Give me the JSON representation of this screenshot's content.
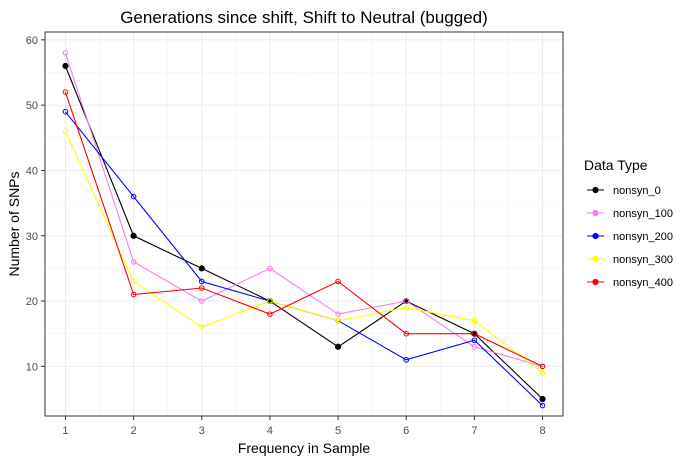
{
  "chart_data": {
    "type": "line",
    "title": "Generations since shift, Shift to Neutral (bugged)",
    "xlabel": "Frequency in Sample",
    "ylabel": "Number of SNPs",
    "x": [
      1,
      2,
      3,
      4,
      5,
      6,
      7,
      8
    ],
    "xlim": [
      0.7,
      8.3
    ],
    "ylim": [
      2.4,
      61.2
    ],
    "yticks": [
      10,
      20,
      30,
      40,
      50,
      60
    ],
    "grid": true,
    "legend": {
      "title": "Data Type",
      "placement": "right"
    },
    "series": [
      {
        "name": "nonsyn_0",
        "color": "#000000",
        "filled": true,
        "values": [
          56,
          30,
          25,
          20,
          13,
          20,
          15,
          5
        ]
      },
      {
        "name": "nonsyn_100",
        "color": "#ee82ee",
        "filled": false,
        "values": [
          58,
          26,
          20,
          25,
          18,
          20,
          13,
          10
        ]
      },
      {
        "name": "nonsyn_200",
        "color": "#0000ff",
        "filled": false,
        "values": [
          49,
          36,
          23,
          20,
          17,
          11,
          14,
          4
        ]
      },
      {
        "name": "nonsyn_300",
        "color": "#ffff00",
        "filled": false,
        "values": [
          46,
          23,
          16,
          20,
          17,
          19,
          17,
          9
        ]
      },
      {
        "name": "nonsyn_400",
        "color": "#ff0000",
        "filled": false,
        "values": [
          52,
          21,
          22,
          18,
          23,
          15,
          15,
          10
        ]
      }
    ]
  }
}
